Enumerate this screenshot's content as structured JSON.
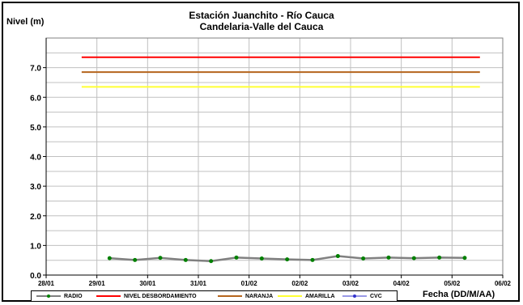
{
  "chart_data": {
    "type": "line",
    "title": "Estación Juanchito - Río Cauca",
    "subtitle": "Candelaria-Valle del Cauca",
    "ylabel": "Nivel (m)",
    "xlabel": "Fecha (DD/M/AA)",
    "ylim": [
      0,
      8
    ],
    "yticks": [
      0,
      1,
      2,
      3,
      4,
      5,
      6,
      7
    ],
    "ytick_labels": [
      "0.0",
      "1.0",
      "2.0",
      "3.0",
      "4.0",
      "5.0",
      "6.0",
      "7.0"
    ],
    "xticks": [
      0,
      1,
      2,
      3,
      4,
      5,
      6,
      7,
      8,
      9
    ],
    "xtick_labels": [
      "28/01",
      "29/01",
      "30/01",
      "31/01",
      "01/02",
      "02/02",
      "03/02",
      "04/02",
      "05/02",
      "06/02"
    ],
    "xlim": [
      0,
      9
    ],
    "grid": true,
    "legend_position": "bottom",
    "series": [
      {
        "name": "RADIO",
        "color": "#808080",
        "marker_color": "#008000",
        "x": [
          1.25,
          1.75,
          2.25,
          2.75,
          3.25,
          3.75,
          4.25,
          4.75,
          5.25,
          5.75,
          6.25,
          6.75,
          7.25,
          7.75,
          8.25
        ],
        "y": [
          0.57,
          0.51,
          0.58,
          0.51,
          0.47,
          0.59,
          0.56,
          0.53,
          0.51,
          0.64,
          0.56,
          0.59,
          0.57,
          0.59,
          0.58
        ]
      },
      {
        "name": "NIVEL DESBORDAMIENTO",
        "color": "#ff0000",
        "x": [
          0.7,
          8.55
        ],
        "y": [
          7.35,
          7.35
        ]
      },
      {
        "name": "NARANJA",
        "color": "#b5651d",
        "x": [
          0.7,
          8.55
        ],
        "y": [
          6.85,
          6.85
        ]
      },
      {
        "name": "AMARILLA",
        "color": "#ffff33",
        "x": [
          0.7,
          8.55
        ],
        "y": [
          6.35,
          6.35
        ]
      },
      {
        "name": "CVC",
        "color": "#3333cc",
        "x": [],
        "y": []
      }
    ]
  }
}
